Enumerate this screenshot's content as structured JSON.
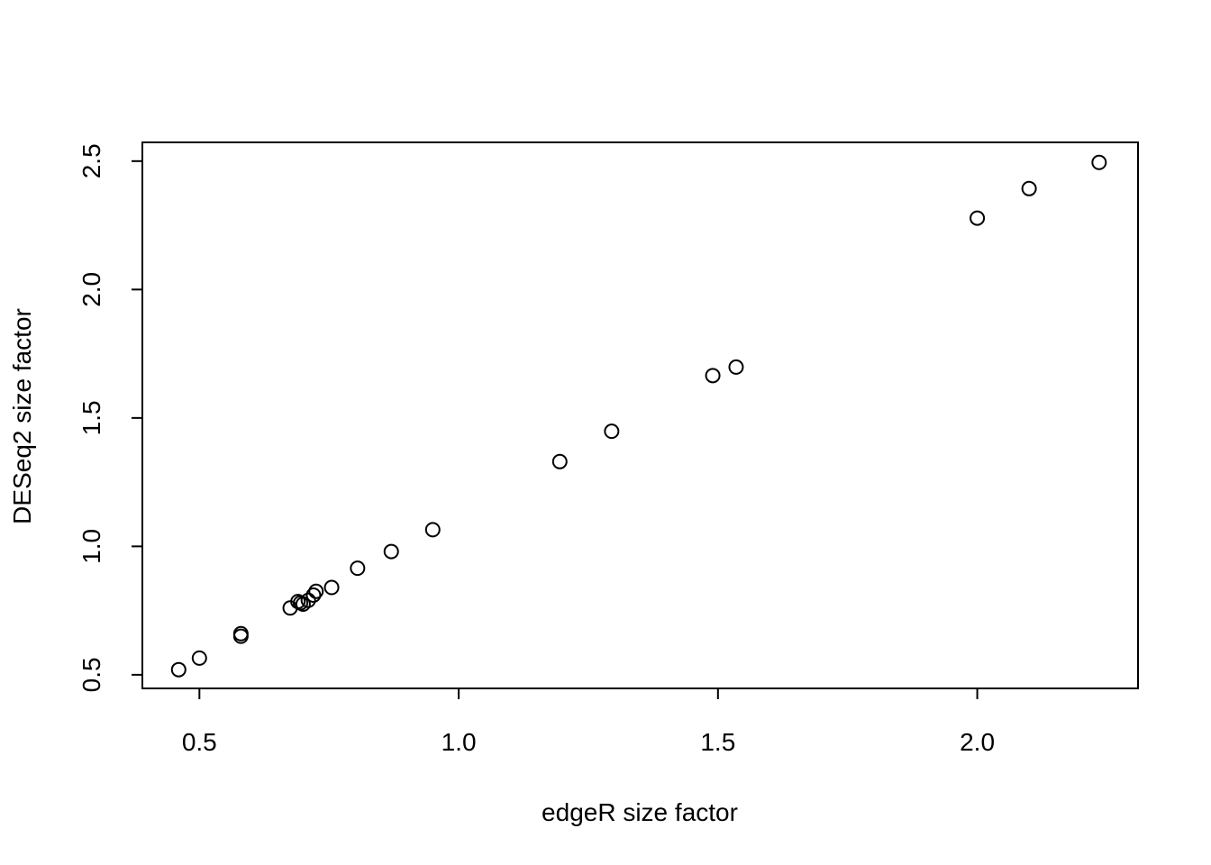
{
  "chart_data": {
    "type": "scatter",
    "title": "",
    "xlabel": "edgeR size factor",
    "ylabel": "DESeq2 size factor",
    "xlim": [
      0.39,
      2.31
    ],
    "ylim": [
      0.447,
      2.573
    ],
    "xticks": [
      0.5,
      1.0,
      1.5,
      2.0
    ],
    "xtick_labels": [
      "0.5",
      "1.0",
      "1.5",
      "2.0"
    ],
    "yticks": [
      0.5,
      1.0,
      1.5,
      2.0,
      2.5
    ],
    "ytick_labels": [
      "0.5",
      "1.0",
      "1.5",
      "2.0",
      "2.5"
    ],
    "grid": false,
    "marker": "open-circle",
    "marker_color": "#000000",
    "points": [
      {
        "x": 0.46,
        "y": 0.52
      },
      {
        "x": 0.5,
        "y": 0.565
      },
      {
        "x": 0.58,
        "y": 0.65
      },
      {
        "x": 0.58,
        "y": 0.66
      },
      {
        "x": 0.675,
        "y": 0.76
      },
      {
        "x": 0.69,
        "y": 0.785
      },
      {
        "x": 0.695,
        "y": 0.78
      },
      {
        "x": 0.7,
        "y": 0.775
      },
      {
        "x": 0.71,
        "y": 0.79
      },
      {
        "x": 0.72,
        "y": 0.81
      },
      {
        "x": 0.725,
        "y": 0.825
      },
      {
        "x": 0.755,
        "y": 0.84
      },
      {
        "x": 0.805,
        "y": 0.915
      },
      {
        "x": 0.87,
        "y": 0.98
      },
      {
        "x": 0.95,
        "y": 1.065
      },
      {
        "x": 1.195,
        "y": 1.33
      },
      {
        "x": 1.295,
        "y": 1.448
      },
      {
        "x": 1.49,
        "y": 1.665
      },
      {
        "x": 1.535,
        "y": 1.698
      },
      {
        "x": 2.0,
        "y": 2.278
      },
      {
        "x": 2.1,
        "y": 2.393
      },
      {
        "x": 2.235,
        "y": 2.495
      }
    ]
  }
}
